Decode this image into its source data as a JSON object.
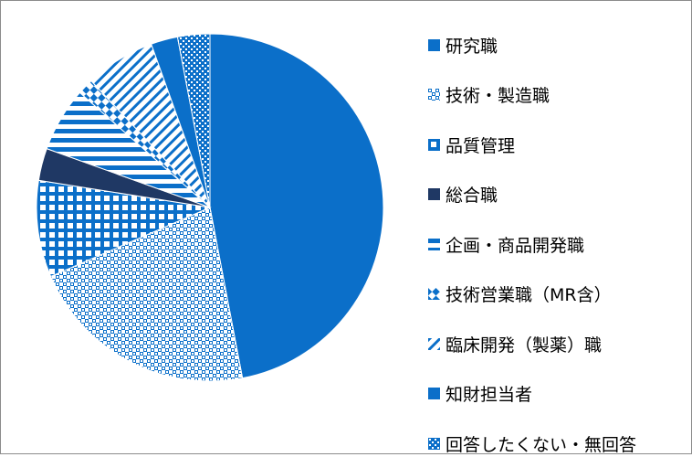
{
  "chart_data": {
    "type": "pie",
    "title": "",
    "slices": [
      {
        "label": "研究職",
        "value": 47.0,
        "color": "#0B6FC9",
        "pattern": "solid"
      },
      {
        "label": "技術・製造職",
        "value": 21.5,
        "color": "#0B6FC9",
        "pattern": "checker"
      },
      {
        "label": "品質管理",
        "value": 9.0,
        "color": "#0B6FC9",
        "pattern": "grid"
      },
      {
        "label": "総合職",
        "value": 3.0,
        "color": "#1F3864",
        "pattern": "solid"
      },
      {
        "label": "企画・商品開発職",
        "value": 6.0,
        "color": "#0B6FC9",
        "pattern": "hstripe"
      },
      {
        "label": "技術営業職（MR含）",
        "value": 1.5,
        "color": "#0B6FC9",
        "pattern": "diagcheck"
      },
      {
        "label": "臨床開発（製薬）職",
        "value": 6.5,
        "color": "#0B6FC9",
        "pattern": "diagstripe"
      },
      {
        "label": "知財担当者",
        "value": 2.5,
        "color": "#0B6FC9",
        "pattern": "solid"
      },
      {
        "label": "回答したくない・無回答",
        "value": 3.0,
        "color": "#0B6FC9",
        "pattern": "dots"
      }
    ],
    "start_angle_deg": 0,
    "direction": "clockwise",
    "legend_position": "right"
  }
}
